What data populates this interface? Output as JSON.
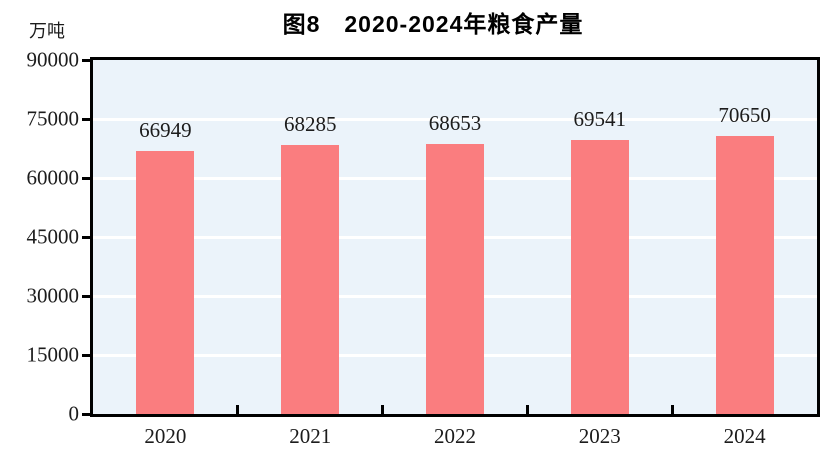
{
  "chart_data": {
    "type": "bar",
    "title": "图8　2020-2024年粮食产量",
    "unit_label": "万吨",
    "categories": [
      "2020",
      "2021",
      "2022",
      "2023",
      "2024"
    ],
    "values": [
      66949,
      68285,
      68653,
      69541,
      70650
    ],
    "data_labels": [
      "66949",
      "68285",
      "68653",
      "69541",
      "70650"
    ],
    "ylim": [
      0,
      90000
    ],
    "yticks": [
      0,
      15000,
      30000,
      45000,
      60000,
      75000,
      90000
    ],
    "ytick_labels": [
      "0",
      "15000",
      "30000",
      "45000",
      "60000",
      "75000",
      "90000"
    ],
    "xlabel": "",
    "ylabel": "万吨",
    "legend": "none",
    "grid": "horizontal",
    "colors": {
      "bar_fill": "#FA7D7F",
      "plot_background": "#EBF3FA",
      "gridline": "#FFFFFF",
      "axis_border": "#000000",
      "text": "#1C1C1C"
    }
  }
}
